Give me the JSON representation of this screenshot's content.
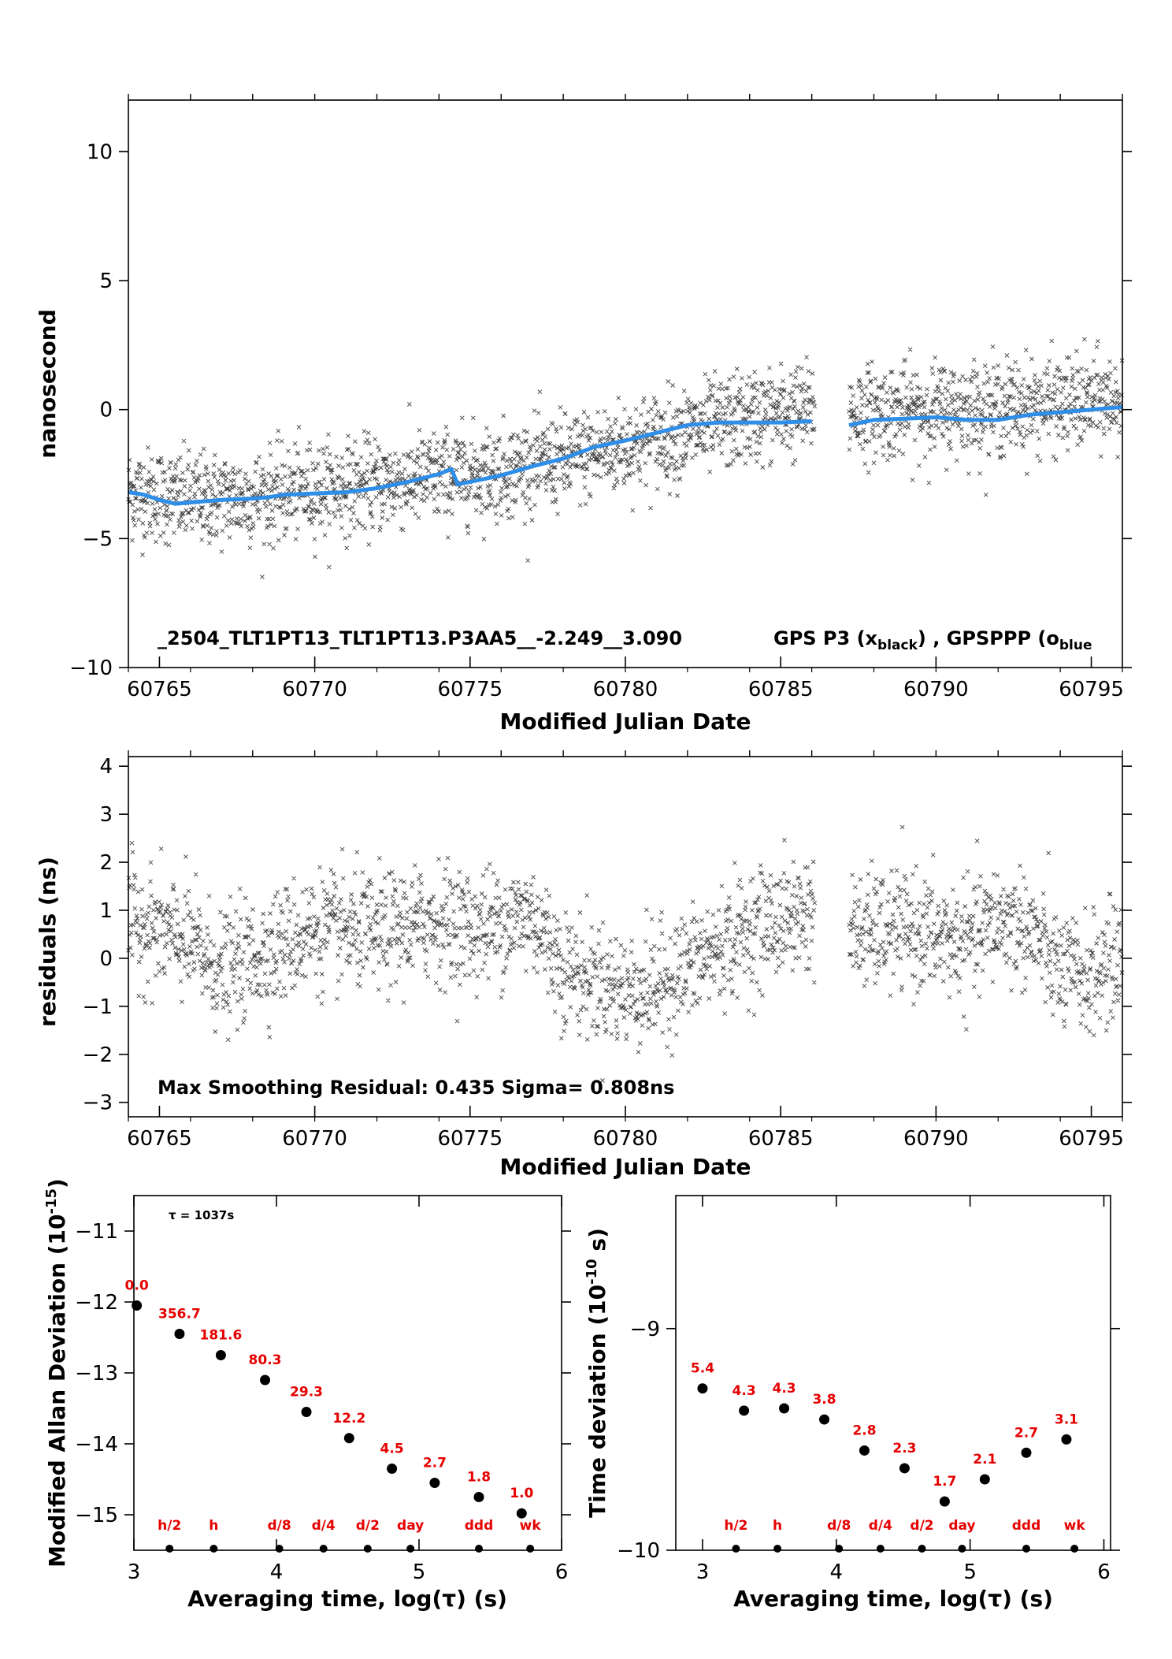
{
  "chart_data": [
    {
      "type": "scatter",
      "id": "top",
      "ylabel": "nanosecond",
      "xlabel": "Modified Julian Date",
      "xlim": [
        60764,
        60796
      ],
      "ylim": [
        -10,
        12
      ],
      "xticks": [
        60765,
        60770,
        60775,
        60780,
        60785,
        60790,
        60795
      ],
      "yticks": [
        -10,
        -5,
        0,
        5,
        10
      ],
      "annotation": "_2504_TLT1PT13_TLT1PT13.P3AA5__-2.249__3.090",
      "legend": {
        "text1": "GPS P3 (x",
        "sub1": "black",
        "text2": ") ,  GPSPPP (o",
        "sub2": "blue"
      },
      "gaps": [
        [
          60786.1,
          60787.2
        ]
      ],
      "series": [
        {
          "name": "GPS P3",
          "marker": "x",
          "color": "#000000",
          "trend": [
            [
              60764,
              -3.2
            ],
            [
              60766,
              -3.5
            ],
            [
              60768,
              -3.4
            ],
            [
              60770,
              -3.1
            ],
            [
              60772,
              -2.9
            ],
            [
              60774,
              -2.6
            ],
            [
              60776,
              -2.4
            ],
            [
              60778,
              -2.0
            ],
            [
              60780,
              -1.4
            ],
            [
              60782,
              -0.9
            ],
            [
              60784,
              -0.3
            ],
            [
              60786,
              0.0
            ],
            [
              60787.3,
              -0.1
            ],
            [
              60790,
              0.0
            ],
            [
              60792,
              0.1
            ],
            [
              60794,
              0.2
            ],
            [
              60796,
              0.4
            ]
          ],
          "scatter_sd": 0.9,
          "n_points": 2600
        },
        {
          "name": "GPSPPP",
          "marker": "o",
          "color": "#2f8ee8",
          "points": [
            [
              60764,
              -3.2
            ],
            [
              60764.5,
              -3.3
            ],
            [
              60765,
              -3.5
            ],
            [
              60765.5,
              -3.65
            ],
            [
              60766,
              -3.6
            ],
            [
              60767,
              -3.5
            ],
            [
              60768,
              -3.45
            ],
            [
              60768.5,
              -3.4
            ],
            [
              60769,
              -3.3
            ],
            [
              60770,
              -3.25
            ],
            [
              60771,
              -3.2
            ],
            [
              60772,
              -3.05
            ],
            [
              60773,
              -2.8
            ],
            [
              60774,
              -2.5
            ],
            [
              60774.4,
              -2.3
            ],
            [
              60774.6,
              -2.9
            ],
            [
              60775,
              -2.8
            ],
            [
              60776,
              -2.55
            ],
            [
              60777,
              -2.2
            ],
            [
              60778,
              -1.9
            ],
            [
              60779,
              -1.45
            ],
            [
              60780,
              -1.2
            ],
            [
              60781,
              -0.9
            ],
            [
              60782,
              -0.6
            ],
            [
              60783,
              -0.5
            ],
            [
              60784,
              -0.5
            ],
            [
              60785,
              -0.5
            ],
            [
              60786,
              -0.45
            ],
            [
              60787.2,
              -0.6
            ],
            [
              60788,
              -0.4
            ],
            [
              60789,
              -0.35
            ],
            [
              60790,
              -0.3
            ],
            [
              60791,
              -0.4
            ],
            [
              60792,
              -0.4
            ],
            [
              60793,
              -0.2
            ],
            [
              60794,
              -0.1
            ],
            [
              60795,
              0.0
            ],
            [
              60796,
              0.1
            ]
          ]
        }
      ]
    },
    {
      "type": "scatter",
      "id": "residuals",
      "ylabel": "residuals (ns)",
      "xlabel": "Modified Julian Date",
      "xlim": [
        60764,
        60796
      ],
      "ylim": [
        -3.3,
        4.2
      ],
      "xticks": [
        60765,
        60770,
        60775,
        60780,
        60785,
        60790,
        60795
      ],
      "yticks": [
        -3,
        -2,
        -1,
        0,
        1,
        2,
        3,
        4
      ],
      "annotation": "Max Smoothing Residual: 0.435  Sigma= 0.808ns",
      "gaps": [
        [
          60786.1,
          60787.2
        ]
      ],
      "series": [
        {
          "name": "residuals",
          "marker": "x",
          "color": "#000000",
          "trend": [
            [
              60764,
              0.8
            ],
            [
              60766,
              0.3
            ],
            [
              60767,
              -0.3
            ],
            [
              60768,
              0.0
            ],
            [
              60769,
              0.3
            ],
            [
              60770,
              0.6
            ],
            [
              60772,
              0.5
            ],
            [
              60774,
              0.8
            ],
            [
              60775,
              0.6
            ],
            [
              60777,
              0.9
            ],
            [
              60778,
              -0.2
            ],
            [
              60780,
              -0.7
            ],
            [
              60781,
              -0.6
            ],
            [
              60782,
              -0.2
            ],
            [
              60784,
              0.6
            ],
            [
              60786,
              1.0
            ],
            [
              60787.3,
              0.5
            ],
            [
              60789,
              0.6
            ],
            [
              60791,
              0.3
            ],
            [
              60792,
              0.8
            ],
            [
              60793,
              0.6
            ],
            [
              60794,
              -0.3
            ],
            [
              60795,
              -0.4
            ],
            [
              60796,
              0.1
            ]
          ],
          "scatter_sd": 0.6,
          "n_points": 2300
        }
      ]
    },
    {
      "type": "scatter",
      "id": "mdev",
      "ylabel": "Modified Allan Deviation (10",
      "ylabel_sup": "-15",
      "ylabel_end": ")",
      "xlabel": "Averaging time, log(τ) (s)",
      "xlim": [
        3,
        6
      ],
      "ylim": [
        -15.5,
        -10.5
      ],
      "xticks": [
        3,
        4,
        5,
        6
      ],
      "yticks": [
        -15,
        -14,
        -13,
        -12,
        -11
      ],
      "tau_note": "τ = 1037s",
      "points": [
        {
          "x": 3.02,
          "y": -12.05,
          "label": "0.0"
        },
        {
          "x": 3.32,
          "y": -12.45,
          "label": "356.7"
        },
        {
          "x": 3.61,
          "y": -12.75,
          "label": "181.6"
        },
        {
          "x": 3.92,
          "y": -13.1,
          "label": "80.3"
        },
        {
          "x": 4.21,
          "y": -13.55,
          "label": "29.3"
        },
        {
          "x": 4.51,
          "y": -13.92,
          "label": "12.2"
        },
        {
          "x": 4.81,
          "y": -14.35,
          "label": "4.5"
        },
        {
          "x": 5.11,
          "y": -14.55,
          "label": "2.7"
        },
        {
          "x": 5.42,
          "y": -14.75,
          "label": "1.8"
        },
        {
          "x": 5.72,
          "y": -14.98,
          "label": "1.0"
        }
      ],
      "markers": [
        {
          "x": 3.25,
          "label": "h/2"
        },
        {
          "x": 3.56,
          "label": "h"
        },
        {
          "x": 4.02,
          "label": "d/8"
        },
        {
          "x": 4.33,
          "label": "d/4"
        },
        {
          "x": 4.64,
          "label": "d/2"
        },
        {
          "x": 4.94,
          "label": "day"
        },
        {
          "x": 5.42,
          "label": "ddd"
        },
        {
          "x": 5.78,
          "label": "wk"
        }
      ]
    },
    {
      "type": "scatter",
      "id": "tdev",
      "ylabel": "Time deviation (10",
      "ylabel_sup": "-10",
      "ylabel_end": " s)",
      "xlabel": "Averaging time, log(τ) (s)",
      "xlim": [
        2.8,
        6.05
      ],
      "ylim": [
        -10,
        -8.4
      ],
      "xticks": [
        3,
        4,
        5,
        6
      ],
      "yticks": [
        -10,
        -9
      ],
      "points": [
        {
          "x": 3.0,
          "y": -9.27,
          "label": "5.4"
        },
        {
          "x": 3.31,
          "y": -9.37,
          "label": "4.3"
        },
        {
          "x": 3.61,
          "y": -9.36,
          "label": "4.3"
        },
        {
          "x": 3.91,
          "y": -9.41,
          "label": "3.8"
        },
        {
          "x": 4.21,
          "y": -9.55,
          "label": "2.8"
        },
        {
          "x": 4.51,
          "y": -9.63,
          "label": "2.3"
        },
        {
          "x": 4.81,
          "y": -9.78,
          "label": "1.7"
        },
        {
          "x": 5.11,
          "y": -9.68,
          "label": "2.1"
        },
        {
          "x": 5.42,
          "y": -9.56,
          "label": "2.7"
        },
        {
          "x": 5.72,
          "y": -9.5,
          "label": "3.1"
        }
      ],
      "markers": [
        {
          "x": 3.25,
          "label": "h/2"
        },
        {
          "x": 3.56,
          "label": "h"
        },
        {
          "x": 4.02,
          "label": "d/8"
        },
        {
          "x": 4.33,
          "label": "d/4"
        },
        {
          "x": 4.64,
          "label": "d/2"
        },
        {
          "x": 4.94,
          "label": "day"
        },
        {
          "x": 5.42,
          "label": "ddd"
        },
        {
          "x": 5.78,
          "label": "wk"
        }
      ]
    }
  ]
}
